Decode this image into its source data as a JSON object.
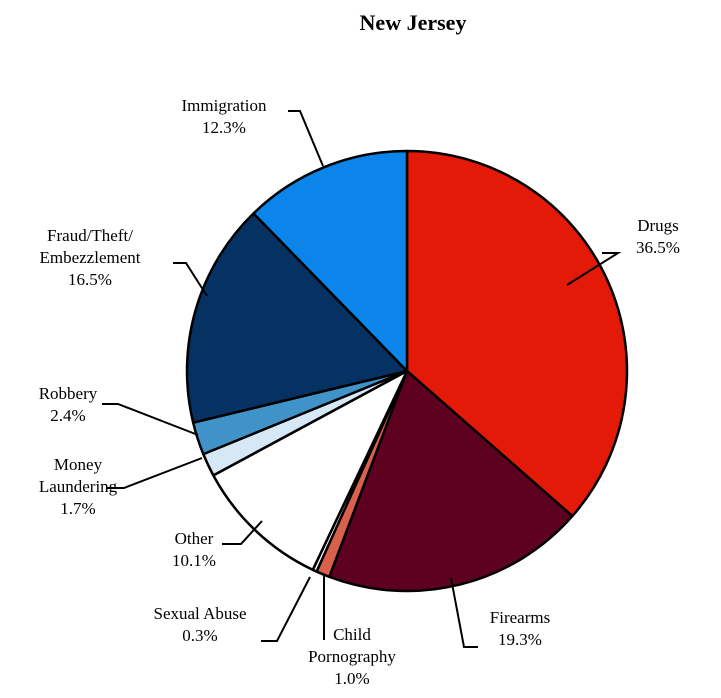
{
  "chart_data": {
    "type": "pie",
    "title": "New Jersey",
    "slices": [
      {
        "name": "Drugs",
        "value": 36.5,
        "label": "36.5%",
        "color": "#e31a08"
      },
      {
        "name": "Firearms",
        "value": 19.3,
        "label": "19.3%",
        "color": "#5e0020"
      },
      {
        "name": "Child Pornography",
        "value": 1.0,
        "label": "1.0%",
        "color": "#d9604a"
      },
      {
        "name": "Sexual Abuse",
        "value": 0.3,
        "label": "0.3%",
        "color": "#ffffff"
      },
      {
        "name": "Other",
        "value": 10.1,
        "label": "10.1%",
        "color": "#ffffff"
      },
      {
        "name": "Money Laundering",
        "value": 1.7,
        "label": "1.7%",
        "color": "#d6e8f5"
      },
      {
        "name": "Robbery",
        "value": 2.4,
        "label": "2.4%",
        "color": "#3f93c8"
      },
      {
        "name": "Fraud/Theft/Embezzlement",
        "value": 16.5,
        "label": "16.5%",
        "color": "#063263"
      },
      {
        "name": "Immigration",
        "value": 12.3,
        "label": "12.3%",
        "color": "#0c85eb"
      }
    ],
    "label_lines": [
      [
        "Drugs",
        "36.5%"
      ],
      [
        "Firearms",
        "19.3%"
      ],
      [
        "Child",
        "Pornography",
        "1.0%"
      ],
      [
        "Sexual Abuse",
        "0.3%"
      ],
      [
        "Other",
        "10.1%"
      ],
      [
        "Money",
        "Laundering",
        "1.7%"
      ],
      [
        "Robbery",
        "2.4%"
      ],
      [
        "Fraud/Theft/",
        "Embezzlement",
        "16.5%"
      ],
      [
        "Immigration",
        "12.3%"
      ]
    ]
  }
}
